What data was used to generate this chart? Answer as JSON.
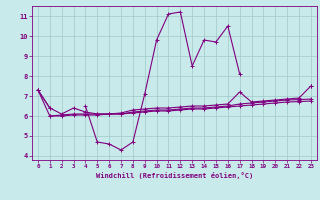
{
  "xlabel": "Windchill (Refroidissement éolien,°C)",
  "x_values": [
    0,
    1,
    2,
    3,
    4,
    5,
    6,
    7,
    8,
    9,
    10,
    11,
    12,
    13,
    14,
    15,
    16,
    17,
    18,
    19,
    20,
    21,
    22,
    23
  ],
  "line1_y": [
    7.3,
    6.4,
    null,
    null,
    6.5,
    4.7,
    4.6,
    4.3,
    4.7,
    7.1,
    9.8,
    11.1,
    11.2,
    8.5,
    9.8,
    9.7,
    10.5,
    8.1,
    null,
    null,
    null,
    null,
    null,
    7.5
  ],
  "line2_y": [
    7.3,
    6.4,
    6.1,
    6.4,
    6.2,
    6.1,
    6.1,
    6.15,
    6.3,
    6.35,
    6.4,
    6.4,
    6.45,
    6.5,
    6.5,
    6.55,
    6.6,
    7.2,
    6.7,
    6.75,
    6.8,
    6.85,
    6.9,
    7.5
  ],
  "line3_y": [
    7.3,
    6.0,
    6.05,
    6.1,
    6.1,
    6.1,
    6.1,
    6.1,
    6.2,
    6.25,
    6.3,
    6.3,
    6.35,
    6.4,
    6.4,
    6.45,
    6.5,
    6.6,
    6.65,
    6.7,
    6.75,
    6.8,
    6.82,
    6.85
  ],
  "line4_y": [
    null,
    6.0,
    6.0,
    6.05,
    6.05,
    6.05,
    6.1,
    6.1,
    6.15,
    6.2,
    6.25,
    6.25,
    6.3,
    6.35,
    6.35,
    6.4,
    6.45,
    6.5,
    6.55,
    6.6,
    6.65,
    6.7,
    6.72,
    6.75
  ],
  "line_color": "#800080",
  "bg_color": "#c8eaea",
  "grid_color": "#a0c8c8",
  "ylim": [
    3.8,
    11.5
  ],
  "xlim": [
    -0.5,
    23.5
  ],
  "yticks": [
    4,
    5,
    6,
    7,
    8,
    9,
    10,
    11
  ],
  "xticks": [
    0,
    1,
    2,
    3,
    4,
    5,
    6,
    7,
    8,
    9,
    10,
    11,
    12,
    13,
    14,
    15,
    16,
    17,
    18,
    19,
    20,
    21,
    22,
    23
  ]
}
